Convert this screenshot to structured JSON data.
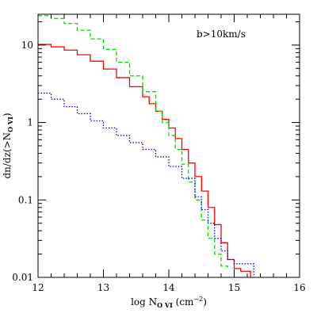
{
  "chart_data": {
    "type": "line",
    "title": "",
    "annotation": "b>10km/s",
    "xlabel": {
      "pre": "log N",
      "sub": "O VI",
      "post": " (cm",
      "sup": "−2",
      "end": ")"
    },
    "ylabel": {
      "pre": "dn/dz(>N",
      "sub": "O VI",
      "end": ")"
    },
    "xlim": [
      12,
      16
    ],
    "ylim": [
      0.01,
      25
    ],
    "yscale": "log",
    "xticks": [
      12,
      13,
      14,
      15,
      16
    ],
    "xtick_labels": [
      "12",
      "13",
      "14",
      "15",
      "16"
    ],
    "yticks": [
      0.01,
      0.1,
      1,
      10
    ],
    "ytick_labels": [
      "0.01",
      "0.1",
      "1",
      "10"
    ],
    "series": [
      {
        "color": "#ff0000",
        "style": "solid",
        "x": [
          12.0,
          12.2,
          12.4,
          12.6,
          12.8,
          13.0,
          13.2,
          13.4,
          13.6,
          13.7,
          13.8,
          13.9,
          14.0,
          14.1,
          14.2,
          14.3,
          14.4,
          14.5,
          14.6,
          14.7,
          14.8,
          14.9,
          15.0,
          15.1,
          15.25
        ],
        "y": [
          10.2,
          9.5,
          8.6,
          7.5,
          6.2,
          4.9,
          3.8,
          2.9,
          2.15,
          1.75,
          1.4,
          1.1,
          0.85,
          0.62,
          0.45,
          0.3,
          0.2,
          0.13,
          0.08,
          0.048,
          0.028,
          0.017,
          0.013,
          0.012,
          0.01
        ]
      },
      {
        "color": "#00dd00",
        "style": "dashed",
        "x": [
          12.0,
          12.2,
          12.4,
          12.6,
          12.8,
          13.0,
          13.2,
          13.4,
          13.6,
          13.8,
          13.9,
          14.0,
          14.1,
          14.2,
          14.3,
          14.4,
          14.5,
          14.6,
          14.7,
          14.8,
          14.9
        ],
        "y": [
          24.0,
          22.0,
          19.0,
          15.5,
          12.0,
          8.8,
          6.0,
          4.0,
          2.5,
          1.4,
          1.0,
          0.68,
          0.45,
          0.29,
          0.17,
          0.1,
          0.055,
          0.032,
          0.02,
          0.014,
          0.013
        ]
      },
      {
        "color": "#0000dd",
        "style": "dotted",
        "x": [
          12.0,
          12.2,
          12.4,
          12.6,
          12.8,
          13.0,
          13.2,
          13.4,
          13.6,
          13.8,
          14.0,
          14.2,
          14.4,
          14.5,
          14.6,
          14.7,
          14.8,
          14.9,
          15.0,
          15.2,
          15.3
        ],
        "y": [
          2.4,
          2.0,
          1.6,
          1.3,
          1.05,
          0.85,
          0.68,
          0.55,
          0.45,
          0.36,
          0.27,
          0.19,
          0.11,
          0.075,
          0.05,
          0.032,
          0.022,
          0.017,
          0.015,
          0.015,
          0.01
        ]
      }
    ]
  }
}
